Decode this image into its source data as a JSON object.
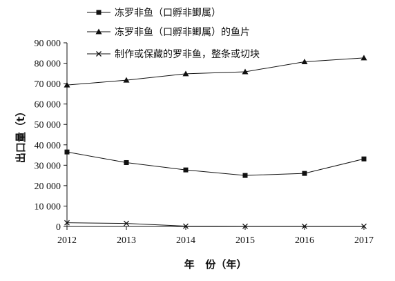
{
  "chart_data": {
    "type": "line",
    "x": [
      2012,
      2013,
      2014,
      2015,
      2016,
      2017
    ],
    "series": [
      {
        "name": "冻罗非鱼（口孵非鲫属）",
        "values": [
          36500,
          31300,
          27700,
          25000,
          26000,
          33100
        ],
        "marker": "square"
      },
      {
        "name": "冻罗非鱼（口孵非鲫属）的鱼片",
        "values": [
          69300,
          71700,
          74800,
          75800,
          80700,
          82600
        ],
        "marker": "triangle"
      },
      {
        "name": "制作或保藏的罗非鱼，整条或切块",
        "values": [
          1800,
          1500,
          150,
          100,
          100,
          100
        ],
        "marker": "x"
      }
    ],
    "xlabel": "年   份（年）",
    "ylabel": "出口量（t）",
    "ylim": [
      0,
      90000
    ],
    "yticks": [
      0,
      10000,
      20000,
      30000,
      40000,
      50000,
      60000,
      70000,
      80000,
      90000
    ],
    "yticklabels": [
      "0",
      "10 000",
      "20 000",
      "30 000",
      "40 000",
      "50 000",
      "60 000",
      "70 000",
      "80 000",
      "90 000"
    ],
    "xticklabels": [
      "2012",
      "2013",
      "2014",
      "2015",
      "2016",
      "2017"
    ],
    "grid": false,
    "legend": "top"
  }
}
